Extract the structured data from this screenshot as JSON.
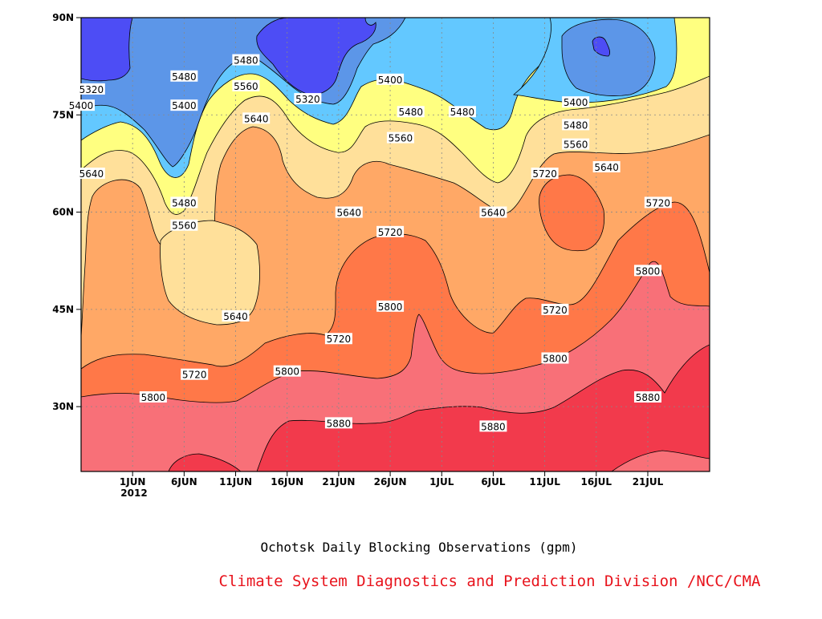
{
  "chart_data": {
    "type": "contour",
    "title": "Ochotsk Daily Blocking Observations (gpm)",
    "credit": "Climate System Diagnostics and Prediction Division /NCC/CMA",
    "x_ticks": [
      "1JUN",
      "6JUN",
      "11JUN",
      "16JUN",
      "21JUN",
      "26JUN",
      "1JUL",
      "6JUL",
      "11JUL",
      "16JUL",
      "21JUL"
    ],
    "x_sublabel": "2012",
    "y_ticks": [
      "30N",
      "45N",
      "60N",
      "75N",
      "90N"
    ],
    "ylim": [
      20,
      90
    ],
    "contour_levels": [
      5320,
      5400,
      5480,
      5560,
      5640,
      5720,
      5800,
      5880
    ],
    "fill_colors": {
      "deep_blue": "#4d4df5",
      "mid_blue": "#5c96e8",
      "light_blue": "#63c8ff",
      "yellow": "#ffff80",
      "light_tan": "#ffe09a",
      "tan": "#ffa866",
      "orange": "#ff7848",
      "pink": "#f87078",
      "red": "#f23a4c"
    },
    "contour_labels": [
      {
        "level": "5320",
        "date": "2012-05-28",
        "lat": 79
      },
      {
        "level": "5400",
        "date": "2012-05-27",
        "lat": 76.5
      },
      {
        "level": "5480",
        "date": "2012-06-06",
        "lat": 81
      },
      {
        "level": "5400",
        "date": "2012-06-06",
        "lat": 76.5
      },
      {
        "level": "5480",
        "date": "2012-06-12",
        "lat": 83.5
      },
      {
        "level": "5560",
        "date": "2012-06-12",
        "lat": 79.5
      },
      {
        "level": "5640",
        "date": "2012-06-13",
        "lat": 74.5
      },
      {
        "level": "5320",
        "date": "2012-06-18",
        "lat": 77.5
      },
      {
        "level": "5400",
        "date": "2012-06-26",
        "lat": 80.5
      },
      {
        "level": "5480",
        "date": "2012-06-28",
        "lat": 75.5
      },
      {
        "level": "5560",
        "date": "2012-06-27",
        "lat": 71.5
      },
      {
        "level": "5480",
        "date": "2012-07-03",
        "lat": 75.5
      },
      {
        "level": "5400",
        "date": "2012-07-14",
        "lat": 77
      },
      {
        "level": "5480",
        "date": "2012-07-14",
        "lat": 73.5
      },
      {
        "level": "5560",
        "date": "2012-07-14",
        "lat": 70.5
      },
      {
        "level": "5640",
        "date": "2012-07-17",
        "lat": 67
      },
      {
        "level": "5640",
        "date": "2012-05-28",
        "lat": 66
      },
      {
        "level": "5480",
        "date": "2012-06-06",
        "lat": 61.5
      },
      {
        "level": "5560",
        "date": "2012-06-06",
        "lat": 58
      },
      {
        "level": "5640",
        "date": "2012-06-22",
        "lat": 60
      },
      {
        "level": "5720",
        "date": "2012-06-26",
        "lat": 57
      },
      {
        "level": "5640",
        "date": "2012-07-06",
        "lat": 60
      },
      {
        "level": "5720",
        "date": "2012-07-11",
        "lat": 66
      },
      {
        "level": "5720",
        "date": "2012-07-22",
        "lat": 61.5
      },
      {
        "level": "5800",
        "date": "2012-07-21",
        "lat": 51
      },
      {
        "level": "5640",
        "date": "2012-06-11",
        "lat": 44
      },
      {
        "level": "5720",
        "date": "2012-06-21",
        "lat": 40.5
      },
      {
        "level": "5800",
        "date": "2012-06-26",
        "lat": 45.5
      },
      {
        "level": "5720",
        "date": "2012-07-12",
        "lat": 45
      },
      {
        "level": "5800",
        "date": "2012-07-12",
        "lat": 37.5
      },
      {
        "level": "5720",
        "date": "2012-06-07",
        "lat": 35
      },
      {
        "level": "5800",
        "date": "2012-06-16",
        "lat": 35.5
      },
      {
        "level": "5800",
        "date": "2012-06-03",
        "lat": 31.5
      },
      {
        "level": "5880",
        "date": "2012-06-21",
        "lat": 27.5
      },
      {
        "level": "5880",
        "date": "2012-07-06",
        "lat": 27
      },
      {
        "level": "5880",
        "date": "2012-07-21",
        "lat": 31.5
      }
    ]
  }
}
